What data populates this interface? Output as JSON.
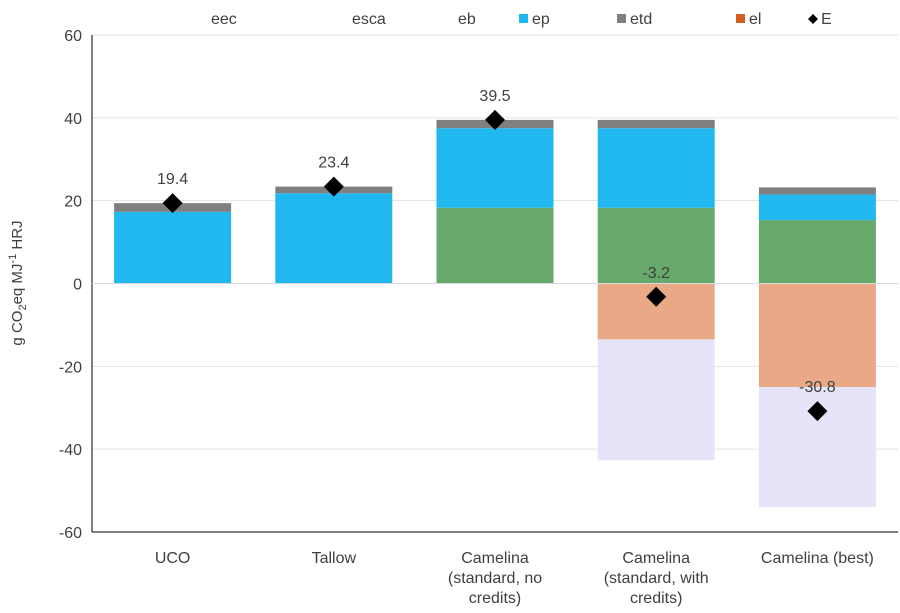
{
  "chart_data": {
    "type": "bar",
    "stacked": true,
    "ylabel_parts": [
      "g CO",
      "2",
      "eq MJ",
      "-1",
      " HRJ"
    ],
    "ylim": [
      -60,
      60
    ],
    "yticks": [
      60,
      40,
      20,
      0,
      -20,
      -40,
      -60
    ],
    "grid": true,
    "legend_position": "top",
    "categories": [
      [
        "UCO"
      ],
      [
        "Tallow"
      ],
      [
        "Camelina",
        "(standard, no",
        "credits)"
      ],
      [
        "Camelina",
        "(standard, with",
        "credits)"
      ],
      [
        "Camelina (best)"
      ]
    ],
    "legend": [
      {
        "name": "eec",
        "color": "#67a86b",
        "marker": "none"
      },
      {
        "name": "esca",
        "color": "#e9a886",
        "marker": "none"
      },
      {
        "name": "eb",
        "color": "#e6e4f8",
        "marker": "none"
      },
      {
        "name": "ep",
        "color": "#21b8ef",
        "marker": "square"
      },
      {
        "name": "etd",
        "color": "#7f7f7f",
        "marker": "square"
      },
      {
        "name": "el",
        "color": "#d2601f",
        "marker": "square"
      },
      {
        "name": "E",
        "color": "#000000",
        "marker": "diamond"
      }
    ],
    "series": [
      {
        "name": "eec",
        "color": "#67a86b",
        "values": [
          0,
          0,
          18.3,
          18.3,
          15.3
        ]
      },
      {
        "name": "esca",
        "color": "#e9a886",
        "values": [
          0,
          0,
          0,
          -13.5,
          -25
        ]
      },
      {
        "name": "eb",
        "color": "#e6e4f8",
        "values": [
          0,
          0,
          0,
          -29.2,
          -29
        ]
      },
      {
        "name": "ep",
        "color": "#21b8ef",
        "values": [
          17.3,
          21.8,
          19.2,
          19.2,
          6.2
        ]
      },
      {
        "name": "etd",
        "color": "#7f7f7f",
        "values": [
          2.1,
          1.6,
          2.0,
          2.0,
          1.7
        ]
      },
      {
        "name": "el",
        "color": "#d2601f",
        "values": [
          0,
          0,
          0,
          0,
          0
        ]
      }
    ],
    "totals": {
      "name": "E",
      "values": [
        19.4,
        23.4,
        39.5,
        -3.2,
        -30.8
      ]
    },
    "total_labels": [
      "19.4",
      "23.4",
      "39.5",
      "-3.2",
      "-30.8"
    ]
  }
}
